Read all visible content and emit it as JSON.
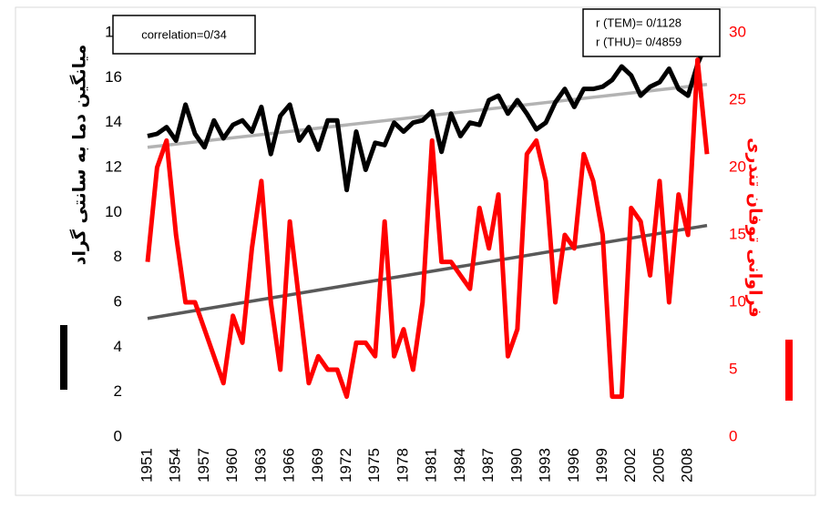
{
  "chart_data": {
    "type": "line",
    "y_label": "میانگین دما به سانتی گراد",
    "y2_label": "فراوانی توفان تندری",
    "annotations": [
      "correlation=0/34",
      "r (TEM)= 0/1128",
      "r (THU)= 0/4859"
    ],
    "x": [
      1951,
      1952,
      1953,
      1954,
      1955,
      1956,
      1957,
      1958,
      1959,
      1960,
      1961,
      1962,
      1963,
      1964,
      1965,
      1966,
      1967,
      1968,
      1969,
      1970,
      1971,
      1972,
      1973,
      1974,
      1975,
      1976,
      1977,
      1978,
      1979,
      1980,
      1981,
      1982,
      1983,
      1984,
      1985,
      1986,
      1987,
      1988,
      1989,
      1990,
      1991,
      1992,
      1993,
      1994,
      1995,
      1996,
      1997,
      1998,
      1999,
      2000,
      2001,
      2002,
      2003,
      2004,
      2005,
      2006,
      2007,
      2008,
      2009,
      2010
    ],
    "xlim": [
      1951,
      2010
    ],
    "xticks": [
      1951,
      1954,
      1957,
      1960,
      1963,
      1966,
      1969,
      1972,
      1975,
      1978,
      1981,
      1984,
      1987,
      1990,
      1993,
      1996,
      1999,
      2002,
      2005,
      2008
    ],
    "ylim": [
      0,
      18
    ],
    "yticks": [
      0,
      2,
      4,
      6,
      8,
      10,
      12,
      14,
      16,
      18
    ],
    "y2lim": [
      0,
      30
    ],
    "y2ticks": [
      0,
      5,
      10,
      15,
      20,
      25,
      30
    ],
    "series": [
      {
        "color": "#000000",
        "values": [
          13.4,
          13.5,
          13.8,
          13.2,
          14.8,
          13.5,
          12.9,
          14.1,
          13.3,
          13.9,
          14.1,
          13.6,
          14.7,
          12.6,
          14.3,
          14.8,
          13.2,
          13.8,
          12.8,
          14.1,
          14.1,
          11.0,
          13.6,
          11.9,
          13.1,
          13.0,
          14.0,
          13.6,
          14.0,
          14.1,
          14.5,
          12.7,
          14.4,
          13.4,
          14.0,
          13.9,
          15.0,
          15.2,
          14.4,
          15.0,
          14.4,
          13.7,
          14.0,
          14.9,
          15.5,
          14.7,
          15.5,
          15.5,
          15.6,
          15.9,
          16.5,
          16.1,
          15.2,
          15.6,
          15.8,
          16.4,
          15.5,
          15.2,
          16.6,
          17.6
        ]
      },
      {
        "color": "#ff0000",
        "axis": "y2",
        "values": [
          13,
          20,
          22,
          15,
          10,
          10,
          8,
          6,
          4,
          9,
          7,
          14,
          19,
          10,
          5,
          16,
          10,
          4,
          6,
          5,
          5,
          3,
          7,
          7,
          6,
          16,
          6,
          8,
          5,
          10,
          22,
          13,
          13,
          12,
          11,
          17,
          14,
          18,
          6,
          8,
          21,
          22,
          19,
          10,
          15,
          14,
          21,
          19,
          15,
          3,
          3,
          17,
          16,
          12,
          19,
          10,
          18,
          15,
          28,
          21
        ]
      }
    ],
    "trendlines": [
      {
        "color": "#b3b3b3",
        "values": [
          12.9,
          15.7
        ]
      },
      {
        "color": "#595959",
        "axis": "y2",
        "values": [
          8.8,
          15.7
        ]
      }
    ]
  }
}
